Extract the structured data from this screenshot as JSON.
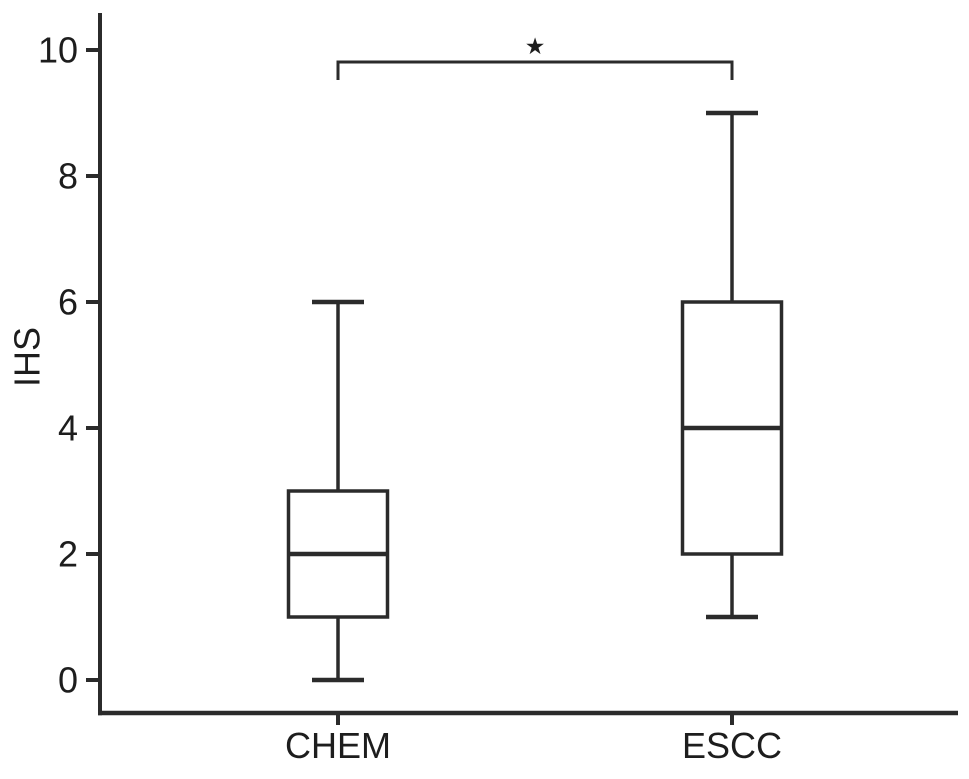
{
  "figure": {
    "background": "#ffffff"
  },
  "chart_data": {
    "type": "boxplot",
    "title": "",
    "xlabel": "",
    "ylabel": "IHS",
    "ylim": [
      0,
      10
    ],
    "yticks": [
      0,
      2,
      4,
      6,
      8,
      10
    ],
    "categories": [
      "CHEM",
      "ESCC"
    ],
    "series": [
      {
        "name": "CHEM",
        "whisker_low": 0,
        "q1": 1,
        "median": 2,
        "q3": 3,
        "whisker_high": 6
      },
      {
        "name": "ESCC",
        "whisker_low": 1,
        "q1": 2,
        "median": 4,
        "q3": 6,
        "whisker_high": 9
      }
    ],
    "annotations": [
      {
        "type": "significance_bracket",
        "from": "CHEM",
        "to": "ESCC",
        "label": "*",
        "display_glyph": "★"
      }
    ],
    "grid": false,
    "legend": null,
    "line_color": "#2b2b2b",
    "box_fill": "#ffffff",
    "label_color": "#1d1d1d"
  }
}
